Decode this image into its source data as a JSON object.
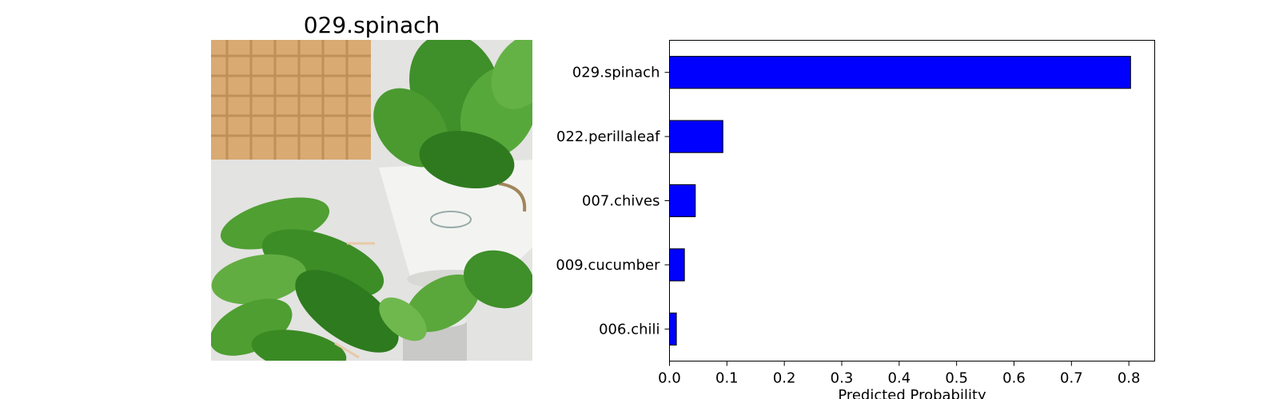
{
  "image_panel": {
    "title": "029.spinach"
  },
  "chart_data": {
    "type": "bar",
    "orientation": "horizontal",
    "categories": [
      "029.spinach",
      "022.perillaleaf",
      "007.chives",
      "009.cucumber",
      "006.chili"
    ],
    "values": [
      0.803,
      0.093,
      0.045,
      0.026,
      0.012
    ],
    "xlabel": "Predicted Probability",
    "ylabel": "",
    "xlim": [
      0,
      0.845
    ],
    "xticks": [
      "0.0",
      "0.1",
      "0.2",
      "0.3",
      "0.4",
      "0.5",
      "0.6",
      "0.7",
      "0.8"
    ],
    "bar_color": "#0000ff",
    "edge_color": "#000000",
    "grid": false
  }
}
